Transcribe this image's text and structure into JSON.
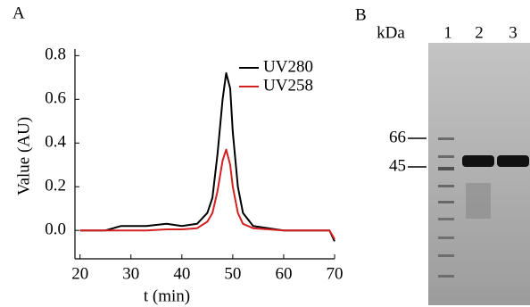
{
  "panel_labels": [
    "A",
    "B"
  ],
  "chart_data": {
    "type": "line",
    "xlabel": "t (min)",
    "ylabel": "Value (AU)",
    "x": [
      20,
      25,
      28,
      30,
      33,
      37,
      40,
      43,
      45,
      46,
      47,
      48,
      48.7,
      49.5,
      50,
      51,
      52,
      54,
      60,
      65,
      69,
      70
    ],
    "series": [
      {
        "name": "UV280",
        "color": "#000000",
        "values": [
          0.0,
          0.0,
          0.02,
          0.02,
          0.02,
          0.03,
          0.02,
          0.03,
          0.08,
          0.15,
          0.35,
          0.6,
          0.72,
          0.65,
          0.45,
          0.2,
          0.08,
          0.02,
          0.0,
          0.0,
          0.0,
          -0.05
        ]
      },
      {
        "name": "UV258",
        "color": "#d42020",
        "values": [
          0.0,
          0.0,
          0.0,
          0.0,
          0.0,
          0.005,
          0.005,
          0.01,
          0.04,
          0.08,
          0.18,
          0.32,
          0.37,
          0.3,
          0.2,
          0.08,
          0.03,
          0.01,
          0.0,
          0.0,
          0.0,
          -0.04
        ]
      }
    ],
    "xlim": [
      19,
      70
    ],
    "ylim": [
      -0.13,
      0.83
    ],
    "xticks": [
      20,
      30,
      40,
      50,
      60,
      70
    ],
    "yticks": [
      {
        "value": 0,
        "label": "0.0"
      },
      0.2,
      0.4,
      0.6,
      0.8
    ],
    "legend": "upper right"
  },
  "gel": {
    "unit": "kDa",
    "lanes": [
      "1",
      "2",
      "3"
    ],
    "markers": [
      66,
      45
    ]
  }
}
